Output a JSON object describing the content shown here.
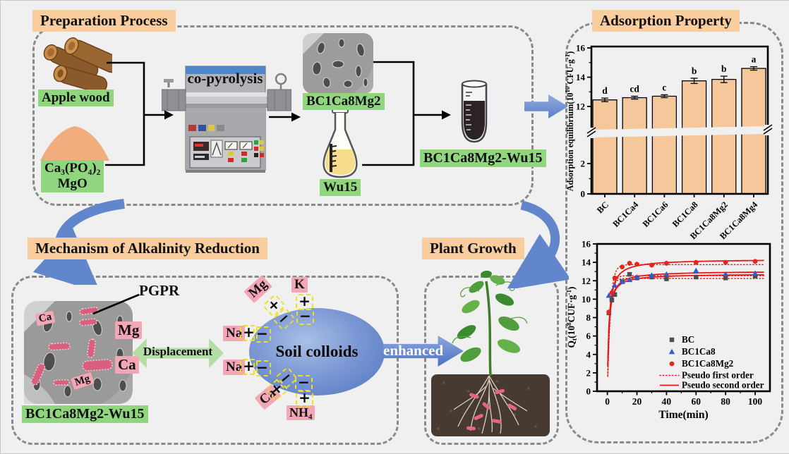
{
  "figure": {
    "preparation": {
      "title": "Preparation Process",
      "apple_wood_label": "Apple wood",
      "mineral_label_line1": "Ca₃(PO₄)₂",
      "mineral_label_line2": "MgO",
      "furnace_label": "co-pyrolysis",
      "biochar_label": "BC1Ca8Mg2",
      "strain_label": "Wu15",
      "product_label": "BC1Ca8Mg2-Wu15"
    },
    "adsorption": {
      "title": "Adsorption Property"
    },
    "mechanism": {
      "title": "Mechanism of Alkalinity Reduction",
      "pgpr_label": "PGPR",
      "sem_label_ca": "Ca",
      "sem_label_mg": "Mg",
      "released_mg": "Mg",
      "released_ca": "Ca",
      "displacement_label": "Displacement",
      "colloid_label": "Soil colloids",
      "ion_mg": "Mg",
      "ion_k": "K",
      "ion_na1": "Na",
      "ion_na2": "Na",
      "ion_ca": "Ca",
      "ion_nh4": "NH₄",
      "product_label": "BC1Ca8Mg2-Wu15",
      "enhanced_label": "enhanced"
    },
    "plant_growth": {
      "title": "Plant Growth"
    }
  },
  "symbols": {
    "plus": "+",
    "minus": "−"
  },
  "colors": {
    "title_bg": "#f9cd9e",
    "label_green": "#8fd67f",
    "label_pink": "#f3a6b6",
    "arrow_blue": "#6286cc",
    "displacement_green": "#b5dda6",
    "colloid_blue": "#5c7fc5"
  },
  "chart_data": [
    {
      "type": "bar",
      "title": "Adsorption Property",
      "ylabel": "Adsorption equilibrium(10¹⁰ CFU·g⁻¹)",
      "ylabel_rich": [
        {
          "t": "Adsorption equilibrium(10"
        },
        {
          "t": "10",
          "sup": true
        },
        {
          "t": " CFU·g"
        },
        {
          "t": "-1",
          "sup": true
        },
        {
          "t": ")"
        }
      ],
      "categories": [
        "BC",
        "BC1Ca4",
        "BC1Ca6",
        "BC1Ca8",
        "BC1Ca8Mg2",
        "BC1Ca8Mg4"
      ],
      "values": [
        12.45,
        12.6,
        12.7,
        13.75,
        13.85,
        14.6
      ],
      "errors": [
        0.12,
        0.1,
        0.1,
        0.18,
        0.22,
        0.12
      ],
      "sig_letters": [
        "d",
        "cd",
        "c",
        "b",
        "b",
        "a"
      ],
      "ylim": [
        0,
        16
      ],
      "y_axis_break": [
        3,
        11
      ],
      "yticks_lower": [
        0,
        2
      ],
      "yticks_upper": [
        12,
        14,
        16
      ],
      "bar_color": "#f6c79a",
      "grid": false,
      "legend_position": "none"
    },
    {
      "type": "scatter",
      "xlabel": "Time(min)",
      "ylabel": "Qₜ(10⁸CUF·g⁻¹)",
      "ylabel_rich": [
        {
          "t": "Q"
        },
        {
          "t": "t",
          "sub": true
        },
        {
          "t": "(10"
        },
        {
          "t": "8",
          "sup": true
        },
        {
          "t": "CUF·g"
        },
        {
          "t": "-1",
          "sup": true
        },
        {
          "t": ")"
        }
      ],
      "xlim": [
        -7,
        110
      ],
      "ylim": [
        0,
        16
      ],
      "xticks": [
        0,
        20,
        40,
        60,
        80,
        100
      ],
      "ytick_step": 2,
      "x": [
        1,
        3,
        5,
        10,
        15,
        20,
        30,
        40,
        60,
        80,
        100
      ],
      "series": [
        {
          "name": "BC",
          "marker": "square",
          "color": "#4d4d4d",
          "y": [
            8.5,
            9.9,
            10.5,
            11.9,
            12.7,
            12.3,
            12.4,
            12.2,
            12.4,
            12.3,
            12.5
          ],
          "pseudo_first": {
            "qe": 12.25,
            "k": 0.6
          },
          "pseudo_second": {
            "qe": 12.75,
            "k": 0.09
          }
        },
        {
          "name": "BC1Ca8",
          "marker": "triangle",
          "color": "#2f5bcc",
          "y": [
            10.4,
            10.8,
            11.5,
            11.9,
            12.1,
            12.4,
            12.6,
            12.7,
            13.1,
            12.7,
            12.8
          ],
          "pseudo_first": {
            "qe": 12.55,
            "k": 0.55
          },
          "pseudo_second": {
            "qe": 13.05,
            "k": 0.08
          }
        },
        {
          "name": "BC1Ca8Mg2",
          "marker": "circle",
          "color": "#e8251d",
          "y": [
            8.6,
            10.7,
            12.3,
            13.5,
            13.9,
            13.8,
            13.7,
            13.9,
            14.0,
            14.0,
            14.1
          ],
          "pseudo_first": {
            "qe": 13.75,
            "k": 0.5
          },
          "pseudo_second": {
            "qe": 14.35,
            "k": 0.065
          }
        }
      ],
      "fit_labels": [
        "Pseudo first order",
        "Pseudo second order"
      ],
      "fit_color": "#ee1512",
      "legend_position": "lower right",
      "grid": false
    }
  ]
}
